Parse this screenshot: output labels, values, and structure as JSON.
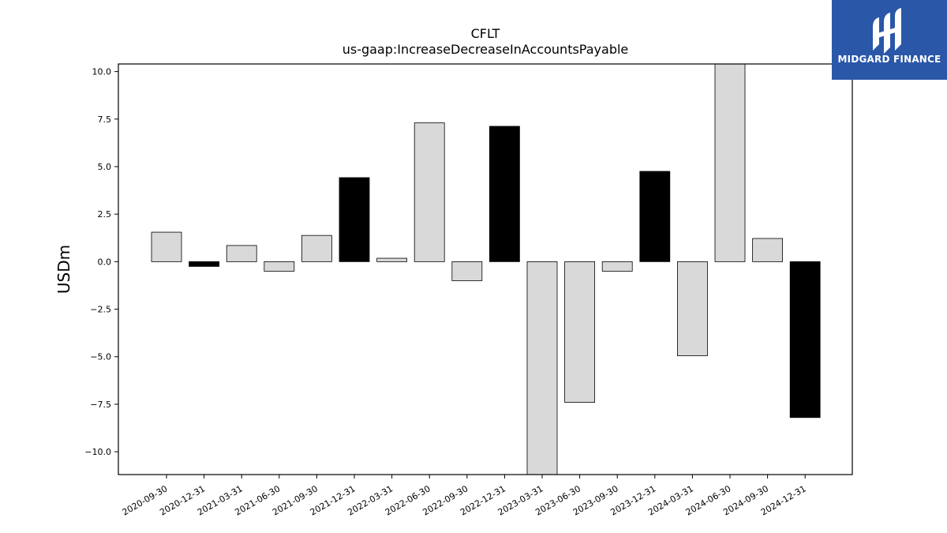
{
  "chart_data": {
    "type": "bar",
    "title": "CFLT",
    "subtitle": "us-gaap:IncreaseDecreaseInAccountsPayable",
    "xlabel": "",
    "ylabel": "USDm",
    "ylim": [
      -11.2,
      10.4
    ],
    "yticks": [
      10.0,
      7.5,
      5.0,
      2.5,
      0.0,
      -2.5,
      -5.0,
      -7.5,
      -10.0
    ],
    "ytick_labels": [
      "10.0",
      "7.5",
      "5.0",
      "2.5",
      "0.0",
      "−2.5",
      "−5.0",
      "−7.5",
      "−10.0"
    ],
    "categories": [
      "2020-09-30",
      "2020-12-31",
      "2021-03-31",
      "2021-06-30",
      "2021-09-30",
      "2021-12-31",
      "2022-03-31",
      "2022-06-30",
      "2022-09-30",
      "2022-12-31",
      "2023-03-31",
      "2023-06-30",
      "2023-09-30",
      "2023-12-31",
      "2024-03-31",
      "2024-06-30",
      "2024-09-30",
      "2024-12-31"
    ],
    "values": [
      1.55,
      -0.25,
      0.85,
      -0.5,
      1.38,
      4.42,
      0.18,
      7.3,
      -1.0,
      7.12,
      -11.2,
      -7.4,
      -0.5,
      4.75,
      -4.95,
      10.4,
      1.22,
      -8.2
    ],
    "highlight": [
      false,
      true,
      false,
      false,
      false,
      true,
      false,
      false,
      false,
      true,
      false,
      false,
      false,
      true,
      false,
      false,
      false,
      true
    ],
    "colors": {
      "bar": "#d9d9d9",
      "highlight": "#000000",
      "edge": "#000000"
    },
    "grid": false,
    "legend": "none"
  },
  "logo": {
    "text": "MIDGARD FINANCE",
    "color": "#2a57a8"
  }
}
